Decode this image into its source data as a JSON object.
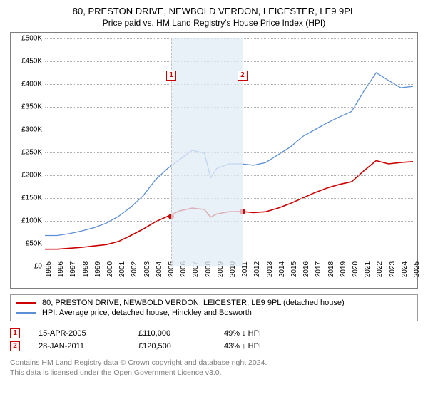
{
  "title": {
    "main": "80, PRESTON DRIVE, NEWBOLD VERDON, LEICESTER, LE9 9PL",
    "sub": "Price paid vs. HM Land Registry's House Price Index (HPI)"
  },
  "chart": {
    "type": "line",
    "background_color": "#ffffff",
    "border_color": "#7f7f7f",
    "grid_color": "#b0b0b0",
    "shade_color": "#e2ecf6",
    "ylim": [
      0,
      500000
    ],
    "ytick_step": 50000,
    "ylabels": [
      "£0",
      "£50K",
      "£100K",
      "£150K",
      "£200K",
      "£250K",
      "£300K",
      "£350K",
      "£400K",
      "£450K",
      "£500K"
    ],
    "x_years": [
      "1995",
      "1996",
      "1997",
      "1998",
      "1999",
      "2000",
      "2001",
      "2002",
      "2003",
      "2004",
      "2005",
      "2006",
      "2007",
      "2008",
      "2009",
      "2010",
      "2011",
      "2012",
      "2013",
      "2014",
      "2015",
      "2016",
      "2017",
      "2018",
      "2019",
      "2020",
      "2021",
      "2022",
      "2023",
      "2024",
      "2025"
    ],
    "label_fontsize": 10,
    "title_fontsize": 13,
    "series": [
      {
        "name": "property",
        "color": "#cc0000",
        "line_width": 1.6,
        "points": [
          [
            0,
            38000
          ],
          [
            1,
            38000
          ],
          [
            2,
            40000
          ],
          [
            3,
            42000
          ],
          [
            4,
            45000
          ],
          [
            5,
            48000
          ],
          [
            6,
            55000
          ],
          [
            7,
            68000
          ],
          [
            8,
            82000
          ],
          [
            9,
            98000
          ],
          [
            10,
            110000
          ],
          [
            11,
            122000
          ],
          [
            12,
            128000
          ],
          [
            13,
            125000
          ],
          [
            13.5,
            108000
          ],
          [
            14,
            115000
          ],
          [
            15,
            120000
          ],
          [
            16,
            120500
          ],
          [
            17,
            118000
          ],
          [
            18,
            120000
          ],
          [
            19,
            128000
          ],
          [
            20,
            138000
          ],
          [
            21,
            150000
          ],
          [
            22,
            162000
          ],
          [
            23,
            172000
          ],
          [
            24,
            180000
          ],
          [
            25,
            186000
          ],
          [
            26,
            210000
          ],
          [
            27,
            232000
          ],
          [
            28,
            225000
          ],
          [
            29,
            228000
          ],
          [
            30,
            230000
          ]
        ]
      },
      {
        "name": "hpi",
        "color": "#5b8fd6",
        "line_width": 1.3,
        "points": [
          [
            0,
            68000
          ],
          [
            1,
            68000
          ],
          [
            2,
            72000
          ],
          [
            3,
            78000
          ],
          [
            4,
            85000
          ],
          [
            5,
            95000
          ],
          [
            6,
            110000
          ],
          [
            7,
            130000
          ],
          [
            8,
            155000
          ],
          [
            9,
            190000
          ],
          [
            10,
            215000
          ],
          [
            11,
            235000
          ],
          [
            12,
            255000
          ],
          [
            13,
            248000
          ],
          [
            13.5,
            195000
          ],
          [
            14,
            215000
          ],
          [
            15,
            225000
          ],
          [
            16,
            225000
          ],
          [
            17,
            222000
          ],
          [
            18,
            228000
          ],
          [
            19,
            245000
          ],
          [
            20,
            262000
          ],
          [
            21,
            285000
          ],
          [
            22,
            300000
          ],
          [
            23,
            315000
          ],
          [
            24,
            328000
          ],
          [
            25,
            340000
          ],
          [
            26,
            385000
          ],
          [
            27,
            425000
          ],
          [
            28,
            408000
          ],
          [
            29,
            392000
          ],
          [
            30,
            395000
          ]
        ]
      }
    ],
    "markers": [
      {
        "n": "1",
        "x_year": 10.3,
        "y": 110000
      },
      {
        "n": "2",
        "x_year": 16.1,
        "y": 120500
      }
    ],
    "highlight_band": {
      "x_from": 10.3,
      "x_to": 16.1
    }
  },
  "legend": {
    "items": [
      {
        "color": "#cc0000",
        "text": "80, PRESTON DRIVE, NEWBOLD VERDON, LEICESTER, LE9 9PL (detached house)"
      },
      {
        "color": "#5b8fd6",
        "text": "HPI: Average price, detached house, Hinckley and Bosworth"
      }
    ]
  },
  "sales": [
    {
      "n": "1",
      "date": "15-APR-2005",
      "price": "£110,000",
      "delta": "49% ↓ HPI"
    },
    {
      "n": "2",
      "date": "28-JAN-2011",
      "price": "£120,500",
      "delta": "43% ↓ HPI"
    }
  ],
  "footer": {
    "line1": "Contains HM Land Registry data © Crown copyright and database right 2024.",
    "line2": "This data is licensed under the Open Government Licence v3.0."
  }
}
